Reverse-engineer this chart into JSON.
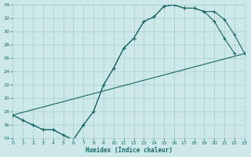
{
  "xlabel": "Humidex (Indice chaleur)",
  "background_color": "#cce8e8",
  "grid_color": "#aacccc",
  "line_color": "#1a6666",
  "tick_color": "#1a6666",
  "xlim": [
    0,
    23
  ],
  "ylim": [
    14,
    34
  ],
  "xticks": [
    0,
    1,
    2,
    3,
    4,
    5,
    6,
    7,
    8,
    9,
    10,
    11,
    12,
    13,
    14,
    15,
    16,
    17,
    18,
    19,
    20,
    21,
    22,
    23
  ],
  "yticks": [
    14,
    16,
    18,
    20,
    22,
    24,
    26,
    28,
    30,
    32,
    34
  ],
  "curve1_x": [
    0,
    1,
    2,
    3,
    4,
    5,
    6,
    7,
    8,
    9,
    10,
    11,
    12,
    13,
    14,
    15,
    16,
    17,
    18,
    19,
    20,
    21,
    22
  ],
  "curve1_y": [
    17.5,
    16.7,
    16.0,
    15.3,
    15.3,
    14.5,
    13.8,
    16.0,
    18.0,
    22.0,
    24.5,
    27.5,
    29.0,
    31.5,
    32.2,
    33.8,
    34.0,
    33.5,
    33.5,
    33.0,
    31.5,
    29.0,
    26.7
  ],
  "curve2_x": [
    0,
    1,
    2,
    3,
    4,
    5,
    6,
    7,
    8,
    9,
    10,
    11,
    12,
    13,
    14,
    15,
    16,
    17,
    18,
    19,
    20,
    21,
    22,
    23
  ],
  "curve2_y": [
    17.5,
    16.7,
    16.0,
    15.3,
    15.3,
    14.5,
    13.8,
    16.0,
    18.0,
    22.0,
    24.5,
    27.5,
    29.0,
    31.5,
    32.2,
    33.8,
    34.0,
    33.5,
    33.5,
    33.0,
    33.0,
    31.8,
    29.5,
    26.7
  ],
  "line3_x": [
    0,
    23
  ],
  "line3_y": [
    17.5,
    26.7
  ]
}
